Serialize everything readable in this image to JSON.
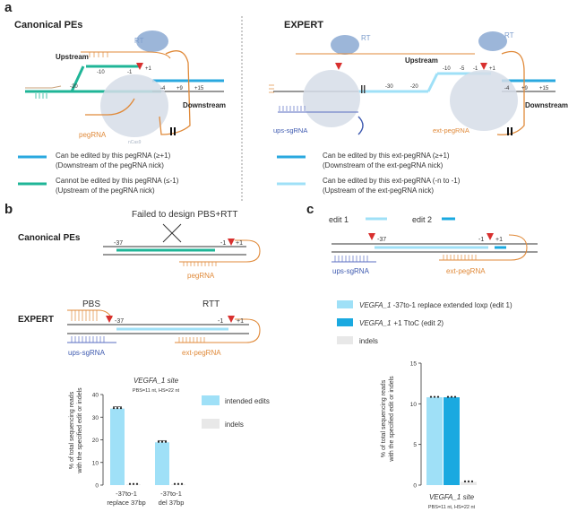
{
  "panel_a": {
    "letter": "a",
    "left_title": "Canonical PEs",
    "right_title": "EXPERT",
    "left_diagram": {
      "rt": "RT",
      "upstream": "Upstream",
      "downstream": "Downstream",
      "pegrna": "pegRNA",
      "nick": "nCas9",
      "ii": "II",
      "pos": [
        "-20",
        "-10",
        "-1",
        "+1",
        "-4",
        "+9",
        "+15"
      ]
    },
    "right_diagram": {
      "rt1": "RT",
      "rt2": "RT",
      "upstream": "Upstream",
      "downstream": "Downstream",
      "ups_sgrna": "ups-sgRNA",
      "ext_pegrna": "ext-pegRNA",
      "ii": "II",
      "pos": [
        "-30",
        "-20",
        "-10",
        "-5",
        "-1",
        "+1",
        "-4",
        "+9",
        "+15"
      ]
    },
    "legend_left": [
      {
        "line1": "Can be edited by this pegRNA (≥+1)",
        "line2": "(Downstream of the pegRNA nick)",
        "color": "#29a8df"
      },
      {
        "line1": "Cannot be edited by this pegRNA (≤-1)",
        "line2": "(Upstream of the pegRNA nick)",
        "color": "#1fb597"
      }
    ],
    "legend_right": [
      {
        "line1": "Can be edited by this ext-pegRNA (≥+1)",
        "line2": "(Downstream of the ext-pegRNA nick)",
        "color": "#29a8df"
      },
      {
        "line1": "Can be edited by this ext-pegRNA (-n to -1)",
        "line2": "(Upstream of the ext-pegRNA nick)",
        "color": "#9fe0f7"
      }
    ]
  },
  "panel_b": {
    "letter": "b",
    "canonical_title": "Canonical PEs",
    "failed_text": "Failed to design PBS+RTT",
    "canon_labels": {
      "m37": "-37",
      "m1": "-1",
      "p1": "+1",
      "pegrna": "pegRNA"
    },
    "expert_title": "EXPERT",
    "expert_labels": {
      "pbs": "PBS",
      "rtt": "RTT",
      "m37": "-37",
      "m1": "-1",
      "p1": "+1",
      "ups": "ups-sgRNA",
      "ext": "ext-pegRNA"
    }
  },
  "panel_c": {
    "letter": "c",
    "edit1": "edit 1",
    "edit2": "edit 2",
    "labels": {
      "m37": "-37",
      "m1": "-1",
      "p1": "+1",
      "ups": "ups-sgRNA",
      "ext": "ext-pegRNA"
    },
    "legend": [
      {
        "italic": "VEGFA_1",
        "rest": " -37to-1 replace extended loxp (edit 1)",
        "color": "#9fe0f7"
      },
      {
        "italic": "",
        "rest": "+1 TtoC (edit 2)",
        "prefix_italic": "VEGFA_1",
        "color": "#1aa9e0"
      },
      {
        "italic": "",
        "rest": "indels",
        "color": "#e8e8e8"
      }
    ]
  },
  "chart_data": [
    {
      "type": "bar",
      "title": "VEGFA_1 site",
      "subtitle": "PBS=11 nt, HS=22 nt",
      "ylabel": "% of total sequencing reads with the specified edit or indels",
      "ylim": [
        0,
        40
      ],
      "yticks": [
        0,
        10,
        20,
        30,
        40
      ],
      "categories": [
        "-37to-1 replace 37bp",
        "-37to-1 del 37bp"
      ],
      "series": [
        {
          "name": "intended edits",
          "values": [
            33.8,
            18.9
          ],
          "color": "#9fe0f7"
        },
        {
          "name": "indels",
          "values": [
            0.3,
            0.3
          ],
          "color": "#e8e8e8"
        }
      ],
      "legend": [
        "intended edits",
        "indels"
      ]
    },
    {
      "type": "bar",
      "title": "VEGFA_1 site",
      "subtitle": "PBS=11 nt, HS=22 nt",
      "ylabel": "% of total sequencing reads with the specified edit or indels",
      "ylim": [
        0,
        15
      ],
      "yticks": [
        0,
        5,
        10,
        15
      ],
      "categories": [
        ""
      ],
      "series": [
        {
          "name": "edit 1",
          "values": [
            10.8
          ],
          "color": "#9fe0f7"
        },
        {
          "name": "edit 2",
          "values": [
            10.8
          ],
          "color": "#1aa9e0"
        },
        {
          "name": "indels",
          "values": [
            0.4
          ],
          "color": "#e8e8e8"
        }
      ]
    }
  ]
}
